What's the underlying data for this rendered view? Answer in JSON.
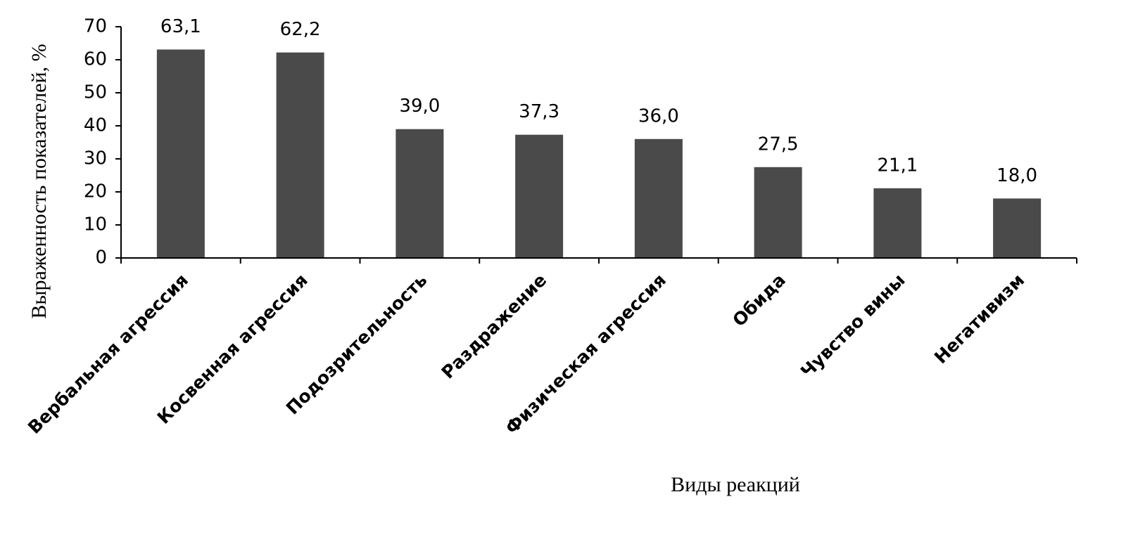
{
  "chart_data": {
    "type": "bar",
    "categories": [
      "Вербальная агрессия",
      "Косвенная агрессия",
      "Подозрительность",
      "Раздражение",
      "Физическая агрессия",
      "Обида",
      "Чувство вины",
      "Негативизм"
    ],
    "values": [
      63.1,
      62.2,
      39.0,
      37.3,
      36.0,
      27.5,
      21.1,
      18.0
    ],
    "value_labels": [
      "63,1",
      "62,2",
      "39,0",
      "37,3",
      "36,0",
      "27,5",
      "21,1",
      "18,0"
    ],
    "color": "#4a4a4a",
    "ylim": [
      0,
      70
    ],
    "yticks": [
      0,
      10,
      20,
      30,
      40,
      50,
      60,
      70
    ],
    "grid": false,
    "y_label": "Выраженность показателей, %",
    "x_label": "Виды реакций"
  }
}
